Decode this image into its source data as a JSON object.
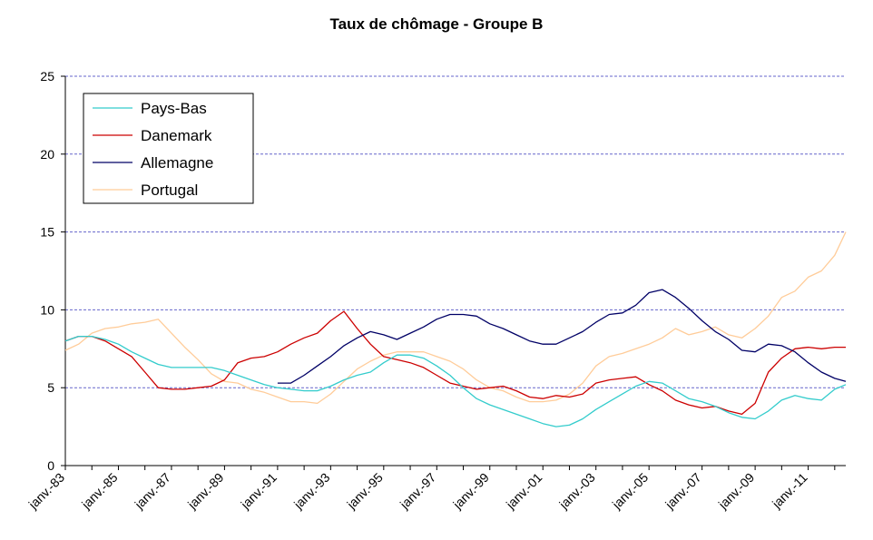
{
  "chart_data": {
    "type": "line",
    "title": "Taux de chômage - Groupe B",
    "xlabel": "",
    "ylabel": "",
    "ylim": [
      0,
      25
    ],
    "yticks": [
      0,
      5,
      10,
      15,
      20,
      25
    ],
    "xlim": [
      "1983-01",
      "2012-06"
    ],
    "x_ticks": [
      "janv.-83",
      "janv.-85",
      "janv.-87",
      "janv.-89",
      "janv.-91",
      "janv.-93",
      "janv.-95",
      "janv.-97",
      "janv.-99",
      "janv.-01",
      "janv.-03",
      "janv.-05",
      "janv.-07",
      "janv.-09",
      "janv.-11"
    ],
    "grid": "horizontal dashed",
    "legend_position": "top-left",
    "series": [
      {
        "name": "Pays-Bas",
        "color": "#33CCCC",
        "points": [
          [
            "1983-01",
            8.0
          ],
          [
            "1983-07",
            8.3
          ],
          [
            "1984-01",
            8.3
          ],
          [
            "1984-07",
            8.1
          ],
          [
            "1985-01",
            7.8
          ],
          [
            "1985-07",
            7.3
          ],
          [
            "1986-01",
            6.9
          ],
          [
            "1986-07",
            6.5
          ],
          [
            "1987-01",
            6.3
          ],
          [
            "1987-07",
            6.3
          ],
          [
            "1988-01",
            6.3
          ],
          [
            "1988-07",
            6.3
          ],
          [
            "1989-01",
            6.1
          ],
          [
            "1989-07",
            5.8
          ],
          [
            "1990-01",
            5.5
          ],
          [
            "1990-07",
            5.2
          ],
          [
            "1991-01",
            5.0
          ],
          [
            "1991-07",
            4.9
          ],
          [
            "1992-01",
            4.8
          ],
          [
            "1992-07",
            4.8
          ],
          [
            "1993-01",
            5.1
          ],
          [
            "1993-07",
            5.5
          ],
          [
            "1994-01",
            5.8
          ],
          [
            "1994-07",
            6.0
          ],
          [
            "1995-01",
            6.6
          ],
          [
            "1995-07",
            7.1
          ],
          [
            "1996-01",
            7.1
          ],
          [
            "1996-07",
            6.9
          ],
          [
            "1997-01",
            6.4
          ],
          [
            "1997-07",
            5.8
          ],
          [
            "1998-01",
            5.0
          ],
          [
            "1998-07",
            4.3
          ],
          [
            "1999-01",
            3.9
          ],
          [
            "1999-07",
            3.6
          ],
          [
            "2000-01",
            3.3
          ],
          [
            "2000-07",
            3.0
          ],
          [
            "2001-01",
            2.7
          ],
          [
            "2001-07",
            2.5
          ],
          [
            "2002-01",
            2.6
          ],
          [
            "2002-07",
            3.0
          ],
          [
            "2003-01",
            3.6
          ],
          [
            "2003-07",
            4.1
          ],
          [
            "2004-01",
            4.6
          ],
          [
            "2004-07",
            5.1
          ],
          [
            "2005-01",
            5.4
          ],
          [
            "2005-07",
            5.3
          ],
          [
            "2006-01",
            4.8
          ],
          [
            "2006-07",
            4.3
          ],
          [
            "2007-01",
            4.1
          ],
          [
            "2007-07",
            3.8
          ],
          [
            "2008-01",
            3.4
          ],
          [
            "2008-07",
            3.1
          ],
          [
            "2009-01",
            3.0
          ],
          [
            "2009-07",
            3.5
          ],
          [
            "2010-01",
            4.2
          ],
          [
            "2010-07",
            4.5
          ],
          [
            "2011-01",
            4.3
          ],
          [
            "2011-07",
            4.2
          ],
          [
            "2012-01",
            4.9
          ],
          [
            "2012-06",
            5.2
          ]
        ]
      },
      {
        "name": "Danemark",
        "color": "#CC0000",
        "points": [
          [
            "1983-01",
            8.0
          ],
          [
            "1983-07",
            8.3
          ],
          [
            "1984-01",
            8.3
          ],
          [
            "1984-07",
            8.0
          ],
          [
            "1985-01",
            7.5
          ],
          [
            "1985-07",
            7.0
          ],
          [
            "1986-01",
            6.0
          ],
          [
            "1986-07",
            5.0
          ],
          [
            "1987-01",
            4.9
          ],
          [
            "1987-07",
            4.9
          ],
          [
            "1988-01",
            5.0
          ],
          [
            "1988-07",
            5.1
          ],
          [
            "1989-01",
            5.5
          ],
          [
            "1989-07",
            6.6
          ],
          [
            "1990-01",
            6.9
          ],
          [
            "1990-07",
            7.0
          ],
          [
            "1991-01",
            7.3
          ],
          [
            "1991-07",
            7.8
          ],
          [
            "1992-01",
            8.2
          ],
          [
            "1992-07",
            8.5
          ],
          [
            "1993-01",
            9.3
          ],
          [
            "1993-07",
            9.9
          ],
          [
            "1994-01",
            8.8
          ],
          [
            "1994-07",
            7.8
          ],
          [
            "1995-01",
            7.0
          ],
          [
            "1995-07",
            6.8
          ],
          [
            "1996-01",
            6.6
          ],
          [
            "1996-07",
            6.3
          ],
          [
            "1997-01",
            5.8
          ],
          [
            "1997-07",
            5.3
          ],
          [
            "1998-01",
            5.1
          ],
          [
            "1998-07",
            4.9
          ],
          [
            "1999-01",
            5.0
          ],
          [
            "1999-07",
            5.1
          ],
          [
            "2000-01",
            4.8
          ],
          [
            "2000-07",
            4.4
          ],
          [
            "2001-01",
            4.3
          ],
          [
            "2001-07",
            4.5
          ],
          [
            "2002-01",
            4.4
          ],
          [
            "2002-07",
            4.6
          ],
          [
            "2003-01",
            5.3
          ],
          [
            "2003-07",
            5.5
          ],
          [
            "2004-01",
            5.6
          ],
          [
            "2004-07",
            5.7
          ],
          [
            "2005-01",
            5.2
          ],
          [
            "2005-07",
            4.8
          ],
          [
            "2006-01",
            4.2
          ],
          [
            "2006-07",
            3.9
          ],
          [
            "2007-01",
            3.7
          ],
          [
            "2007-07",
            3.8
          ],
          [
            "2008-01",
            3.5
          ],
          [
            "2008-07",
            3.3
          ],
          [
            "2009-01",
            4.0
          ],
          [
            "2009-07",
            6.0
          ],
          [
            "2010-01",
            6.9
          ],
          [
            "2010-07",
            7.5
          ],
          [
            "2011-01",
            7.6
          ],
          [
            "2011-07",
            7.5
          ],
          [
            "2012-01",
            7.6
          ],
          [
            "2012-06",
            7.6
          ]
        ]
      },
      {
        "name": "Allemagne",
        "color": "#000066",
        "points": [
          [
            "1991-01",
            5.3
          ],
          [
            "1991-07",
            5.3
          ],
          [
            "1992-01",
            5.8
          ],
          [
            "1992-07",
            6.4
          ],
          [
            "1993-01",
            7.0
          ],
          [
            "1993-07",
            7.7
          ],
          [
            "1994-01",
            8.2
          ],
          [
            "1994-07",
            8.6
          ],
          [
            "1995-01",
            8.4
          ],
          [
            "1995-07",
            8.1
          ],
          [
            "1996-01",
            8.5
          ],
          [
            "1996-07",
            8.9
          ],
          [
            "1997-01",
            9.4
          ],
          [
            "1997-07",
            9.7
          ],
          [
            "1998-01",
            9.7
          ],
          [
            "1998-07",
            9.6
          ],
          [
            "1999-01",
            9.1
          ],
          [
            "1999-07",
            8.8
          ],
          [
            "2000-01",
            8.4
          ],
          [
            "2000-07",
            8.0
          ],
          [
            "2001-01",
            7.8
          ],
          [
            "2001-07",
            7.8
          ],
          [
            "2002-01",
            8.2
          ],
          [
            "2002-07",
            8.6
          ],
          [
            "2003-01",
            9.2
          ],
          [
            "2003-07",
            9.7
          ],
          [
            "2004-01",
            9.8
          ],
          [
            "2004-07",
            10.3
          ],
          [
            "2005-01",
            11.1
          ],
          [
            "2005-07",
            11.3
          ],
          [
            "2006-01",
            10.8
          ],
          [
            "2006-07",
            10.1
          ],
          [
            "2007-01",
            9.3
          ],
          [
            "2007-07",
            8.6
          ],
          [
            "2008-01",
            8.1
          ],
          [
            "2008-07",
            7.4
          ],
          [
            "2009-01",
            7.3
          ],
          [
            "2009-07",
            7.8
          ],
          [
            "2010-01",
            7.7
          ],
          [
            "2010-07",
            7.3
          ],
          [
            "2011-01",
            6.6
          ],
          [
            "2011-07",
            6.0
          ],
          [
            "2012-01",
            5.6
          ],
          [
            "2012-06",
            5.4
          ]
        ]
      },
      {
        "name": "Portugal",
        "color": "#FFCC99",
        "points": [
          [
            "1983-01",
            7.4
          ],
          [
            "1983-07",
            7.8
          ],
          [
            "1984-01",
            8.5
          ],
          [
            "1984-07",
            8.8
          ],
          [
            "1985-01",
            8.9
          ],
          [
            "1985-07",
            9.1
          ],
          [
            "1986-01",
            9.2
          ],
          [
            "1986-07",
            9.4
          ],
          [
            "1987-01",
            8.5
          ],
          [
            "1987-07",
            7.6
          ],
          [
            "1988-01",
            6.8
          ],
          [
            "1988-07",
            5.9
          ],
          [
            "1989-01",
            5.4
          ],
          [
            "1989-07",
            5.3
          ],
          [
            "1990-01",
            4.9
          ],
          [
            "1990-07",
            4.7
          ],
          [
            "1991-01",
            4.4
          ],
          [
            "1991-07",
            4.1
          ],
          [
            "1992-01",
            4.1
          ],
          [
            "1992-07",
            4.0
          ],
          [
            "1993-01",
            4.6
          ],
          [
            "1993-07",
            5.4
          ],
          [
            "1994-01",
            6.2
          ],
          [
            "1994-07",
            6.7
          ],
          [
            "1995-01",
            7.1
          ],
          [
            "1995-07",
            7.3
          ],
          [
            "1996-01",
            7.3
          ],
          [
            "1996-07",
            7.3
          ],
          [
            "1997-01",
            7.0
          ],
          [
            "1997-07",
            6.7
          ],
          [
            "1998-01",
            6.2
          ],
          [
            "1998-07",
            5.5
          ],
          [
            "1999-01",
            5.0
          ],
          [
            "1999-07",
            4.8
          ],
          [
            "2000-01",
            4.4
          ],
          [
            "2000-07",
            4.1
          ],
          [
            "2001-01",
            4.1
          ],
          [
            "2001-07",
            4.2
          ],
          [
            "2002-01",
            4.6
          ],
          [
            "2002-07",
            5.3
          ],
          [
            "2003-01",
            6.4
          ],
          [
            "2003-07",
            7.0
          ],
          [
            "2004-01",
            7.2
          ],
          [
            "2004-07",
            7.5
          ],
          [
            "2005-01",
            7.8
          ],
          [
            "2005-07",
            8.2
          ],
          [
            "2006-01",
            8.8
          ],
          [
            "2006-07",
            8.4
          ],
          [
            "2007-01",
            8.6
          ],
          [
            "2007-07",
            8.9
          ],
          [
            "2008-01",
            8.4
          ],
          [
            "2008-07",
            8.2
          ],
          [
            "2009-01",
            8.8
          ],
          [
            "2009-07",
            9.6
          ],
          [
            "2010-01",
            10.8
          ],
          [
            "2010-07",
            11.2
          ],
          [
            "2011-01",
            12.1
          ],
          [
            "2011-07",
            12.5
          ],
          [
            "2012-01",
            13.5
          ],
          [
            "2012-06",
            15.0
          ]
        ]
      }
    ]
  }
}
